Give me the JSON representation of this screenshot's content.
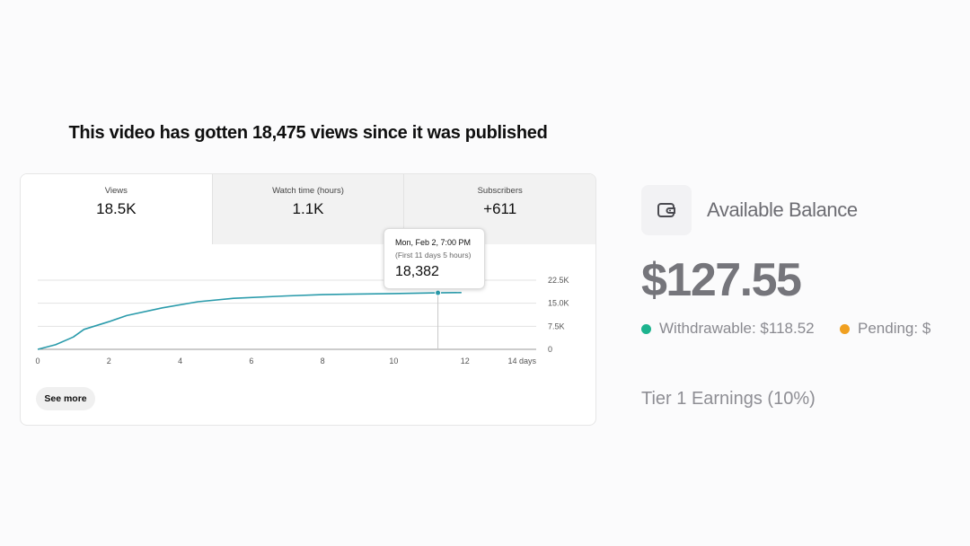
{
  "headline": "This video has gotten 18,475 views since it was published",
  "tabs": [
    {
      "label": "Views",
      "value": "18.5K"
    },
    {
      "label": "Watch time (hours)",
      "value": "1.1K"
    },
    {
      "label": "Subscribers",
      "value": "+611"
    }
  ],
  "tooltip": {
    "date": "Mon, Feb 2, 7:00 PM",
    "subtitle": "(First 11 days 5 hours)",
    "value": "18,382"
  },
  "see_more": "See more",
  "balance": {
    "title": "Available Balance",
    "icon": "wallet-icon",
    "amount": "$127.55",
    "withdrawable": "Withdrawable: $118.52",
    "pending": "Pending: $",
    "tier": "Tier 1 Earnings (10%)",
    "colors": {
      "withdrawable": "#1db38e",
      "pending": "#f0a020"
    }
  },
  "chart_data": {
    "type": "line",
    "series": [
      {
        "x": [
          0,
          0.5,
          1,
          1.3,
          2,
          2.5,
          3.5,
          4.5,
          5.5,
          7,
          8,
          9,
          10,
          11.24,
          11.9
        ],
        "y": [
          0,
          1500,
          4000,
          6500,
          9000,
          11000,
          13500,
          15500,
          16600,
          17400,
          17800,
          18000,
          18150,
          18382,
          18475
        ]
      }
    ],
    "xticks": [
      "0",
      "2",
      "4",
      "6",
      "8",
      "10",
      "12",
      "14 days"
    ],
    "xlim": [
      0,
      14
    ],
    "yticks": [
      "0",
      "7.5K",
      "15.0K",
      "22.5K"
    ],
    "ylim": [
      0,
      22500
    ],
    "grid": true,
    "color": "#2a9bab",
    "highlight_x": 11.24
  }
}
